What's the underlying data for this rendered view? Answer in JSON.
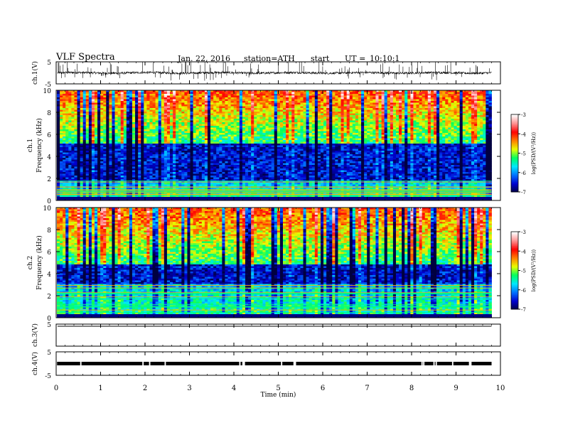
{
  "header": {
    "title": "VLF  Spectra",
    "date": "Jan. 22, 2016",
    "station": "station=ATH",
    "start_label": "start",
    "time_label": "UT  =",
    "start_time": "10:10:1"
  },
  "chart_data": [
    {
      "type": "line",
      "ylabel": "ch.1(V)",
      "ylim": [
        -5,
        5
      ],
      "y_ticks": [
        "5",
        "-5"
      ],
      "baseline": 0,
      "noise_level": 0.5,
      "spike_count": 150
    },
    {
      "type": "heatmap",
      "ylabel": "Frequency  (kHz)",
      "channel": "ch.1",
      "ylim": [
        0,
        10
      ],
      "y_ticks": [
        "0",
        "2",
        "4",
        "6",
        "8",
        "10"
      ],
      "dark_band_khz": [
        1.8,
        5.2
      ],
      "colorbar": {
        "label": "log(PSD/(V²/Hz))",
        "range": [
          -7,
          -3
        ],
        "ticks": [
          "-3",
          "-4",
          "-5",
          "-6",
          "-7"
        ],
        "colors": [
          "#000040",
          "#0000d0",
          "#0070ff",
          "#00e8ff",
          "#00ff60",
          "#e8ff00",
          "#ff8000",
          "#ff0000",
          "#ff9090",
          "#ffffff"
        ]
      }
    },
    {
      "type": "heatmap",
      "ylabel": "Frequency  (kHz)",
      "channel": "ch.2",
      "ylim": [
        0,
        10
      ],
      "y_ticks": [
        "0",
        "2",
        "4",
        "6",
        "8",
        "10"
      ],
      "dark_band_khz": [
        3,
        4.8
      ],
      "colorbar": {
        "label": "log(PSD/(V²/Hz))",
        "range": [
          -7,
          -3
        ],
        "ticks": [
          "-3",
          "-4",
          "-5",
          "-6",
          "-7"
        ],
        "colors": [
          "#000040",
          "#0000d0",
          "#0070ff",
          "#00e8ff",
          "#00ff60",
          "#e8ff00",
          "#ff8000",
          "#ff0000",
          "#ff9090",
          "#ffffff"
        ]
      }
    },
    {
      "type": "line",
      "ylabel": "ch.3(V)",
      "ylim": [
        -5,
        5
      ],
      "y_ticks": [
        "5"
      ],
      "baseline": 5
    },
    {
      "type": "line",
      "ylabel": "ch.4(V)",
      "ylim": [
        -5,
        5
      ],
      "y_ticks": [
        "5",
        "-5"
      ],
      "baseline": 0,
      "gaps_min": [
        0.55,
        1.95,
        2.1,
        2.45,
        4.13,
        4.2,
        4.23,
        5.07,
        5.35,
        5.38,
        8.23,
        8.27,
        8.5,
        8.55,
        8.92,
        9.3,
        9.33
      ]
    }
  ],
  "x_axis": {
    "label": "Time  (min)",
    "range": [
      0,
      10
    ],
    "data_end": 9.8,
    "ticks": [
      "0",
      "1",
      "2",
      "3",
      "4",
      "5",
      "6",
      "7",
      "8",
      "9",
      "10"
    ]
  }
}
